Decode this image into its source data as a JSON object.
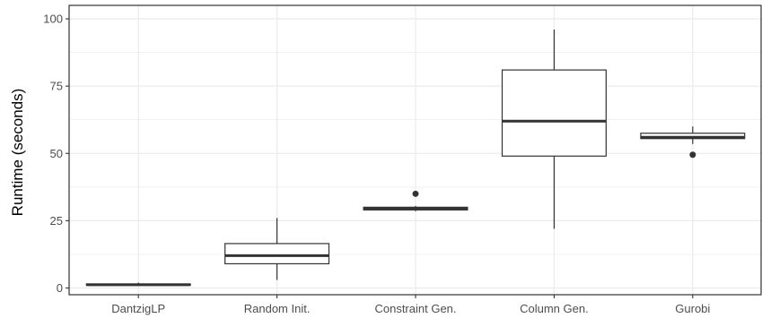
{
  "chart_data": {
    "type": "boxplot",
    "title": "",
    "xlabel": "",
    "ylabel": "Runtime (seconds)",
    "ylim": [
      -2.5,
      105
    ],
    "y_ticks": [
      0,
      25,
      50,
      75,
      100
    ],
    "grid": true,
    "categories": [
      "DantzigLP",
      "Random Init.",
      "Constraint Gen.",
      "Column Gen.",
      "Gurobi"
    ],
    "boxes": [
      {
        "category": "DantzigLP",
        "min": 1.0,
        "q1": 1.0,
        "median": 1.2,
        "q3": 1.5,
        "max": 2.0,
        "outliers": []
      },
      {
        "category": "Random Init.",
        "min": 3.0,
        "q1": 9.0,
        "median": 12.0,
        "q3": 16.5,
        "max": 26.0,
        "outliers": []
      },
      {
        "category": "Constraint Gen.",
        "min": 28.5,
        "q1": 29.0,
        "median": 29.5,
        "q3": 30.0,
        "max": 30.5,
        "outliers": [
          35.0
        ]
      },
      {
        "category": "Column Gen.",
        "min": 22.0,
        "q1": 49.0,
        "median": 62.0,
        "q3": 81.0,
        "max": 96.0,
        "outliers": []
      },
      {
        "category": "Gurobi",
        "min": 53.5,
        "q1": 55.5,
        "median": 56.0,
        "q3": 57.5,
        "max": 60.0,
        "outliers": [
          49.5
        ]
      }
    ],
    "colors": {
      "panel_border": "#333333",
      "grid_major": "#ebebeb",
      "box_stroke": "#333333",
      "box_fill": "#ffffff"
    }
  }
}
